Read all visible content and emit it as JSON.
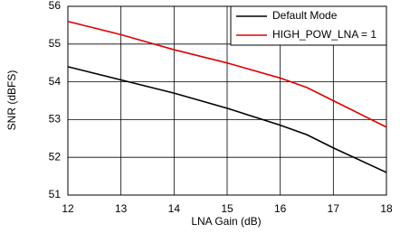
{
  "chart_data": {
    "type": "line",
    "x_label": "LNA Gain (dB)",
    "y_label": "SNR (dBFS)",
    "x": [
      12,
      13,
      14,
      15,
      16,
      16.5,
      17,
      18
    ],
    "series": [
      {
        "name": "Default Mode",
        "color": "#000000",
        "values": [
          54.4,
          54.05,
          53.7,
          53.3,
          52.85,
          52.6,
          52.25,
          51.6
        ]
      },
      {
        "name": "HIGH_POW_LNA = 1",
        "color": "#e00000",
        "values": [
          55.6,
          55.25,
          54.85,
          54.5,
          54.1,
          53.85,
          53.5,
          52.8
        ]
      }
    ],
    "xlim": [
      12,
      18
    ],
    "xticks": [
      12,
      13,
      14,
      15,
      16,
      17,
      18
    ],
    "ylim": [
      51,
      56
    ],
    "yticks": [
      51,
      52,
      53,
      54,
      55,
      56
    ],
    "grid": true,
    "legend": "upper right"
  }
}
